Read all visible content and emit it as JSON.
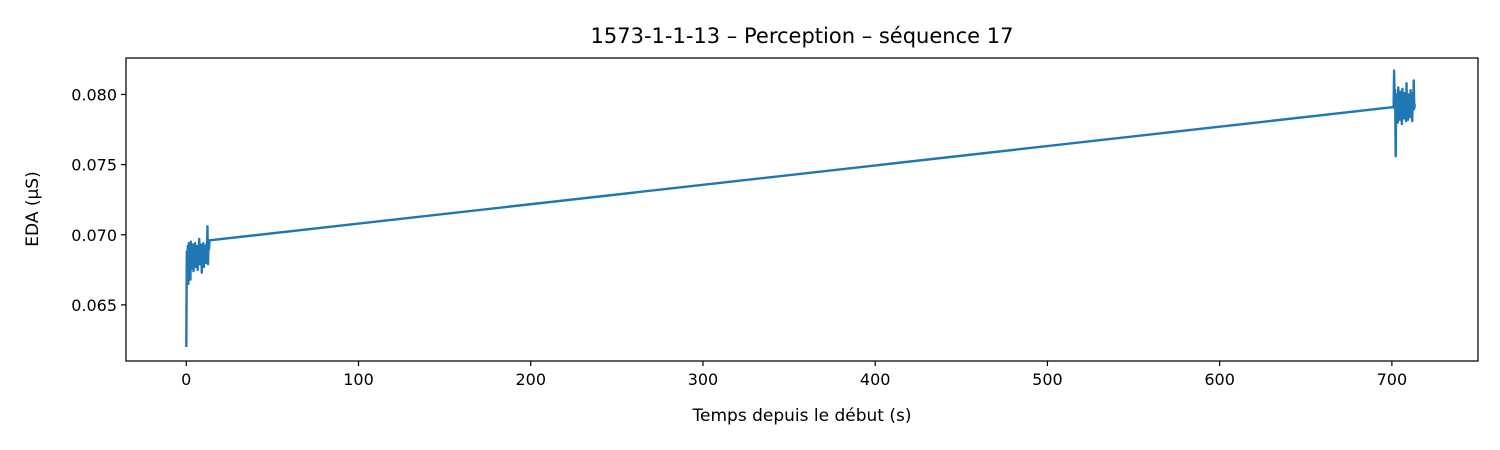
{
  "chart_data": {
    "type": "line",
    "title": "1573-1-1-13 – Perception – séquence 17",
    "xlabel": "Temps depuis le début (s)",
    "ylabel": "EDA (µS)",
    "xlim": [
      -35,
      750
    ],
    "ylim": [
      0.061,
      0.0826
    ],
    "x_ticks": [
      0,
      100,
      200,
      300,
      400,
      500,
      600,
      700
    ],
    "x_tick_labels": [
      "0",
      "100",
      "200",
      "300",
      "400",
      "500",
      "600",
      "700"
    ],
    "y_ticks": [
      0.065,
      0.07,
      0.075,
      0.08
    ],
    "y_tick_labels": [
      "0.065",
      "0.070",
      "0.075",
      "0.080"
    ],
    "grid": false,
    "series": [
      {
        "color": "#1f77b4",
        "x": [
          0,
          0.3,
          0.6,
          0.9,
          1.2,
          1.5,
          1.8,
          2.1,
          2.4,
          2.7,
          3.0,
          3.3,
          3.6,
          3.9,
          4.2,
          4.5,
          4.8,
          5.1,
          5.4,
          5.7,
          6.0,
          6.3,
          6.6,
          6.9,
          7.2,
          7.5,
          7.8,
          8.1,
          8.4,
          8.7,
          9.0,
          9.3,
          9.6,
          9.9,
          10.2,
          10.5,
          10.8,
          11.1,
          11.4,
          11.7,
          12.0,
          12.3,
          12.6,
          12.9,
          13.2,
          13.5,
          701.0,
          701.3,
          701.6,
          701.9,
          702.2,
          702.5,
          702.8,
          703.1,
          703.4,
          703.7,
          704.0,
          704.3,
          704.6,
          704.9,
          705.2,
          705.5,
          705.8,
          706.1,
          706.4,
          706.7,
          707.0,
          707.3,
          707.6,
          707.9,
          708.2,
          708.5,
          708.8,
          709.1,
          709.4,
          709.7,
          710.0,
          710.3,
          710.6,
          710.9,
          711.2,
          711.5,
          711.8,
          712.1,
          712.4,
          712.7,
          713.0,
          713.3
        ],
        "y": [
          0.062,
          0.0688,
          0.067,
          0.0692,
          0.0665,
          0.0694,
          0.0672,
          0.069,
          0.0668,
          0.0695,
          0.0676,
          0.0691,
          0.068,
          0.0693,
          0.0674,
          0.0689,
          0.0684,
          0.0694,
          0.0677,
          0.069,
          0.0683,
          0.0692,
          0.0675,
          0.0691,
          0.0686,
          0.0697,
          0.0679,
          0.069,
          0.0684,
          0.0693,
          0.0673,
          0.0689,
          0.0682,
          0.0694,
          0.0677,
          0.0692,
          0.0685,
          0.0691,
          0.068,
          0.0693,
          0.0686,
          0.0706,
          0.0679,
          0.0693,
          0.069,
          0.0696,
          0.0791,
          0.0817,
          0.079,
          0.0803,
          0.0756,
          0.0798,
          0.0785,
          0.08,
          0.078,
          0.0805,
          0.0788,
          0.0796,
          0.0782,
          0.0802,
          0.0786,
          0.0799,
          0.0779,
          0.0804,
          0.0787,
          0.0797,
          0.0783,
          0.0801,
          0.0789,
          0.0795,
          0.0781,
          0.0808,
          0.0786,
          0.0798,
          0.0782,
          0.08,
          0.0788,
          0.0796,
          0.0784,
          0.0803,
          0.0786,
          0.0799,
          0.0781,
          0.0801,
          0.0789,
          0.081,
          0.079,
          0.0793
        ]
      }
    ]
  }
}
